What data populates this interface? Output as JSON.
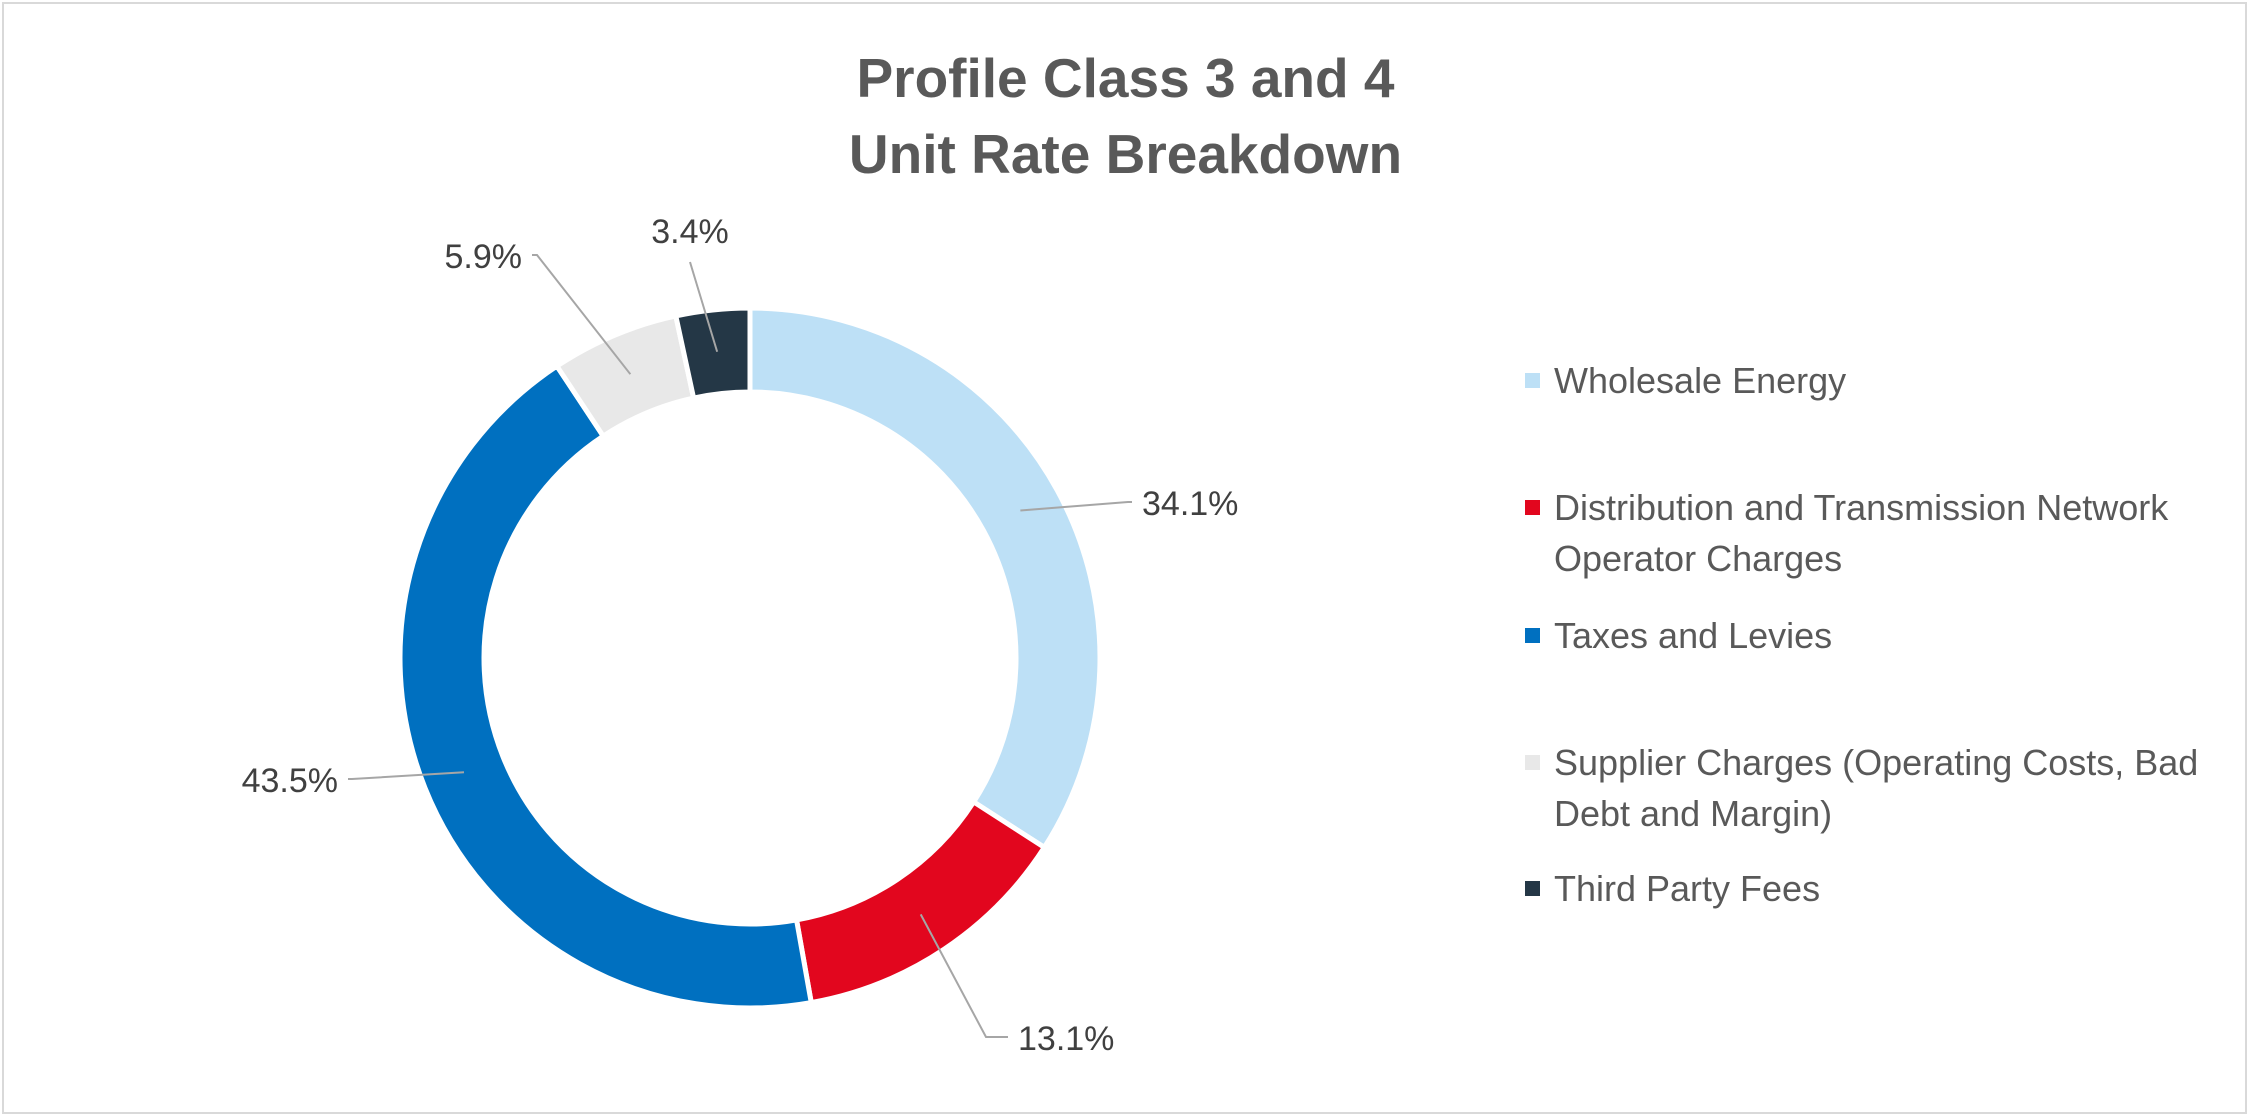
{
  "chart_data": {
    "type": "pie",
    "variant": "doughnut",
    "title": [
      "Profile Class 3 and 4",
      "Unit Rate Breakdown"
    ],
    "categories": [
      "Wholesale Energy",
      "Distribution and Transmission Network Operator Charges",
      "Taxes and Levies",
      "Supplier Charges (Operating Costs, Bad Debt and Margin)",
      "Third Party Fees"
    ],
    "values": [
      34.1,
      13.1,
      43.5,
      5.9,
      3.4
    ],
    "labels": [
      "34.1%",
      "13.1%",
      "43.5%",
      "5.9%",
      "3.4%"
    ],
    "colors": [
      "#bde0f6",
      "#e2061e",
      "#0070c0",
      "#e8e8e8",
      "#243746"
    ],
    "legend_position": "right"
  }
}
